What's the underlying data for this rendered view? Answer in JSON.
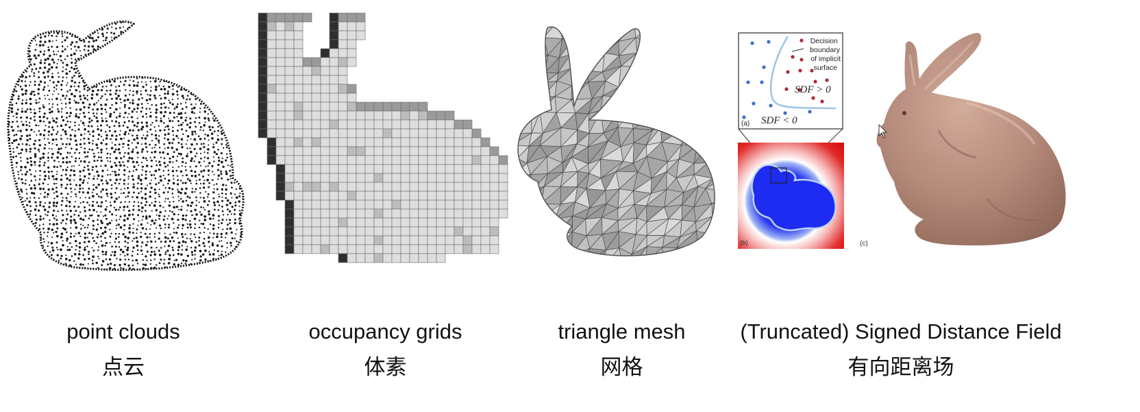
{
  "captions": [
    {
      "en": "point clouds",
      "zh": "点云"
    },
    {
      "en": "occupancy grids",
      "zh": "体素"
    },
    {
      "en": "triangle mesh",
      "zh": "网格"
    },
    {
      "en": "(Truncated) Signed Distance Field",
      "zh": "有向距离场"
    }
  ],
  "sdf_diagram": {
    "panel_a_tag": "(a)",
    "panel_b_tag": "(b)",
    "panel_c_tag": "(c)",
    "boundary_label_lines": [
      "Decision",
      "boundary",
      "of implicit",
      "surface"
    ],
    "sdf_positive": "SDF > 0",
    "sdf_negative": "SDF < 0",
    "colors": {
      "inside": "#2233ee",
      "outside": "#dd1111",
      "boundary": "#9cc3e6",
      "point_inside": "#3b6fd1",
      "point_outside": "#b02a3a",
      "bunny_skin": "#b48a7a"
    }
  }
}
